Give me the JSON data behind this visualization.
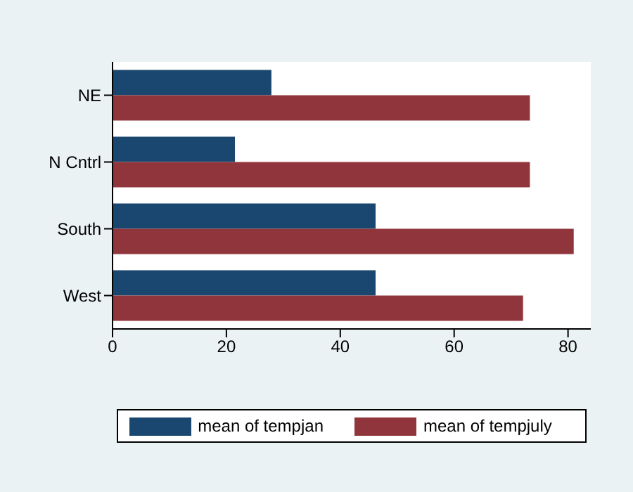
{
  "chart_data": {
    "type": "bar",
    "orientation": "horizontal",
    "categories": [
      "NE",
      "N Cntrl",
      "South",
      "West"
    ],
    "series": [
      {
        "name": "mean of tempjan",
        "color": "#1a476f",
        "values": [
          27.9,
          21.5,
          46.2,
          46.2
        ]
      },
      {
        "name": "mean of tempjuly",
        "color": "#90353b",
        "values": [
          73.3,
          73.3,
          81.0,
          72.1
        ]
      }
    ],
    "xlim": [
      0,
      84
    ],
    "xticks": [
      0,
      20,
      40,
      60,
      80
    ],
    "grid": false,
    "legend": "bottom"
  }
}
